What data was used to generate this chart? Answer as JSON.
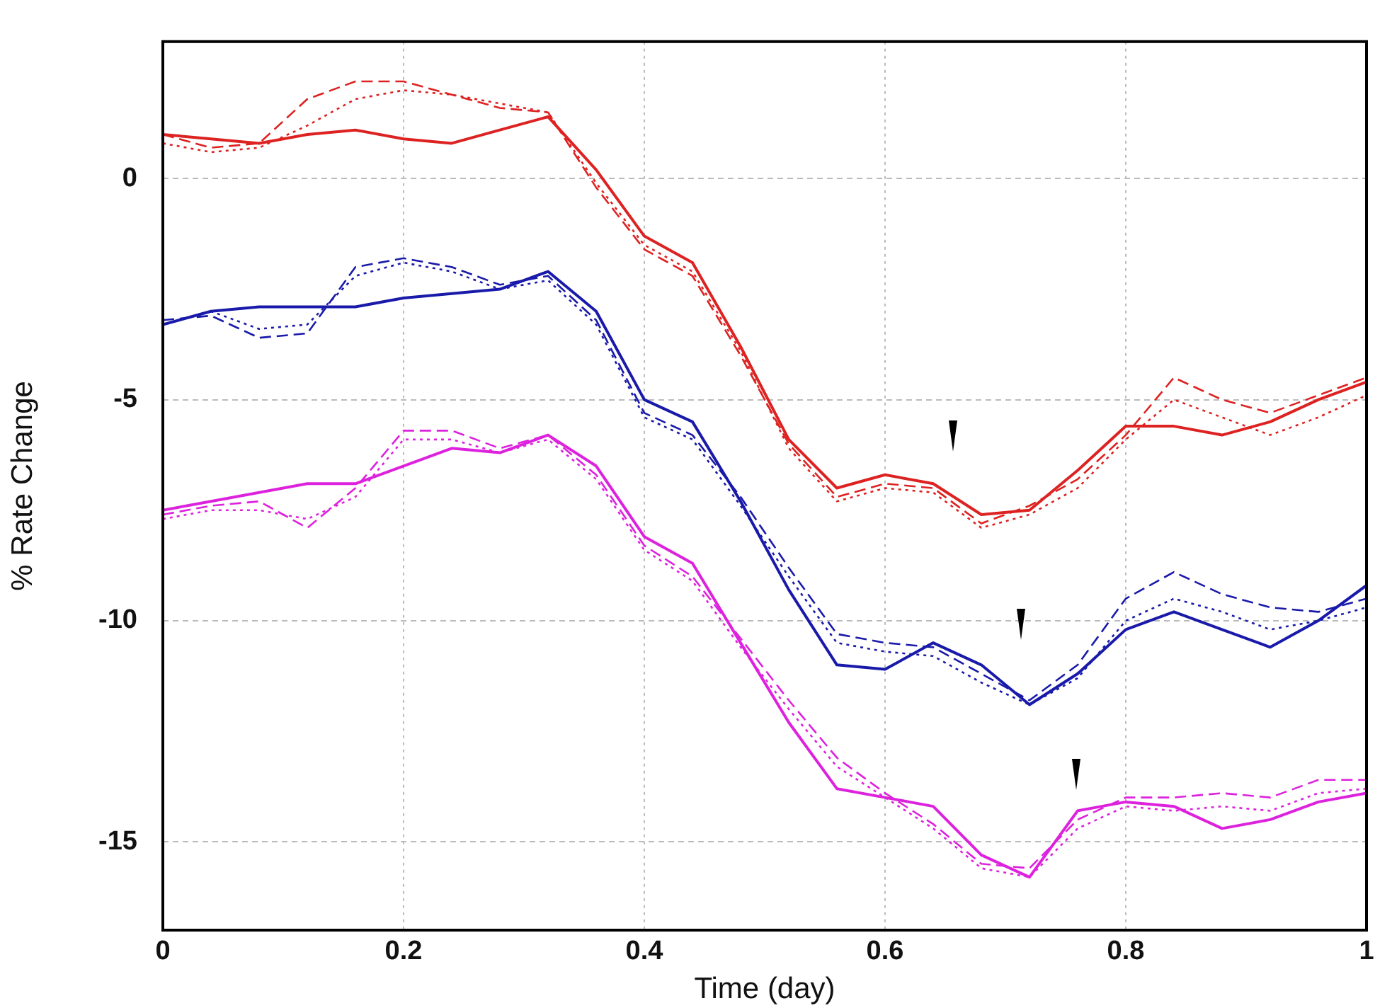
{
  "chart_data": {
    "type": "line",
    "xlabel": "Time (day)",
    "ylabel": "% Rate Change",
    "x": [
      0,
      0.04,
      0.08,
      0.12,
      0.16,
      0.2,
      0.24,
      0.28,
      0.32,
      0.36,
      0.4,
      0.44,
      0.48,
      0.52,
      0.56,
      0.6,
      0.64,
      0.68,
      0.72,
      0.76,
      0.8,
      0.84,
      0.88,
      0.92,
      0.96,
      1
    ],
    "xlim": [
      0,
      1
    ],
    "xticks": [
      0,
      0.2,
      0.4,
      0.6,
      0.8,
      1
    ],
    "ylim": [
      -17,
      3.1
    ],
    "yticks": [
      0,
      -5,
      -10,
      -15
    ],
    "grid": true,
    "marker": "none",
    "series": [
      {
        "color": "#dd2222",
        "line_style": "solid",
        "values": [
          1.0,
          0.9,
          0.8,
          1.0,
          1.1,
          0.9,
          0.8,
          1.1,
          1.4,
          0.2,
          -1.3,
          -1.9,
          -3.8,
          -5.9,
          -7.0,
          -6.7,
          -6.9,
          -7.6,
          -7.5,
          -6.6,
          -5.6,
          -5.6,
          -5.8,
          -5.5,
          -5.0,
          -4.6
        ]
      },
      {
        "color": "#dd2222",
        "line_style": "dashed",
        "values": [
          1.0,
          0.7,
          0.8,
          1.8,
          2.2,
          2.2,
          1.9,
          1.6,
          1.5,
          -0.2,
          -1.6,
          -2.2,
          -4.0,
          -6.0,
          -7.2,
          -6.9,
          -7.0,
          -7.8,
          -7.4,
          -6.8,
          -5.8,
          -4.5,
          -5.0,
          -5.3,
          -4.9,
          -4.5
        ]
      },
      {
        "color": "#dd2222",
        "line_style": "dotted",
        "values": [
          0.8,
          0.6,
          0.7,
          1.2,
          1.8,
          2.0,
          1.9,
          1.7,
          1.5,
          -0.1,
          -1.5,
          -2.1,
          -3.9,
          -6.1,
          -7.3,
          -7.0,
          -7.1,
          -7.9,
          -7.6,
          -7.0,
          -5.9,
          -5.0,
          -5.4,
          -5.8,
          -5.4,
          -4.9
        ]
      },
      {
        "color": "#1a1aaa",
        "line_style": "solid",
        "values": [
          -3.3,
          -3.0,
          -2.9,
          -2.9,
          -2.9,
          -2.7,
          -2.6,
          -2.5,
          -2.1,
          -3.0,
          -5.0,
          -5.5,
          -7.3,
          -9.3,
          -11.0,
          -11.1,
          -10.5,
          -11.0,
          -11.9,
          -11.2,
          -10.2,
          -9.8,
          -10.2,
          -10.6,
          -10.0,
          -9.2
        ]
      },
      {
        "color": "#1a1aaa",
        "line_style": "dashed",
        "values": [
          -3.2,
          -3.1,
          -3.6,
          -3.5,
          -2.0,
          -1.8,
          -2.0,
          -2.4,
          -2.2,
          -3.2,
          -5.3,
          -5.8,
          -7.2,
          -8.8,
          -10.3,
          -10.5,
          -10.6,
          -11.2,
          -11.8,
          -11.0,
          -9.5,
          -8.9,
          -9.4,
          -9.7,
          -9.8,
          -9.5
        ]
      },
      {
        "color": "#1a1aaa",
        "line_style": "dotted",
        "values": [
          -3.3,
          -3.0,
          -3.4,
          -3.3,
          -2.2,
          -1.9,
          -2.1,
          -2.5,
          -2.3,
          -3.3,
          -5.4,
          -5.9,
          -7.4,
          -9.0,
          -10.5,
          -10.7,
          -10.8,
          -11.4,
          -11.9,
          -11.3,
          -10.0,
          -9.5,
          -9.8,
          -10.2,
          -10.0,
          -9.7
        ]
      },
      {
        "color": "#dd22dd",
        "line_style": "solid",
        "values": [
          -7.5,
          -7.3,
          -7.1,
          -6.9,
          -6.9,
          -6.5,
          -6.1,
          -6.2,
          -5.8,
          -6.5,
          -8.1,
          -8.7,
          -10.5,
          -12.3,
          -13.8,
          -14.0,
          -14.2,
          -15.3,
          -15.8,
          -14.3,
          -14.1,
          -14.2,
          -14.7,
          -14.5,
          -14.1,
          -13.9
        ]
      },
      {
        "color": "#dd22dd",
        "line_style": "dashed",
        "values": [
          -7.6,
          -7.4,
          -7.3,
          -7.9,
          -7.0,
          -5.7,
          -5.7,
          -6.1,
          -5.8,
          -6.7,
          -8.3,
          -9.0,
          -10.4,
          -11.8,
          -13.1,
          -13.9,
          -14.6,
          -15.5,
          -15.6,
          -14.5,
          -14.0,
          -14.0,
          -13.9,
          -14.0,
          -13.6,
          -13.6
        ]
      },
      {
        "color": "#dd22dd",
        "line_style": "dotted",
        "values": [
          -7.7,
          -7.5,
          -7.5,
          -7.7,
          -7.2,
          -5.9,
          -5.9,
          -6.2,
          -5.9,
          -6.8,
          -8.4,
          -9.1,
          -10.6,
          -12.0,
          -13.3,
          -14.0,
          -14.7,
          -15.6,
          -15.8,
          -14.7,
          -14.2,
          -14.3,
          -14.2,
          -14.3,
          -13.9,
          -13.8
        ]
      }
    ]
  }
}
